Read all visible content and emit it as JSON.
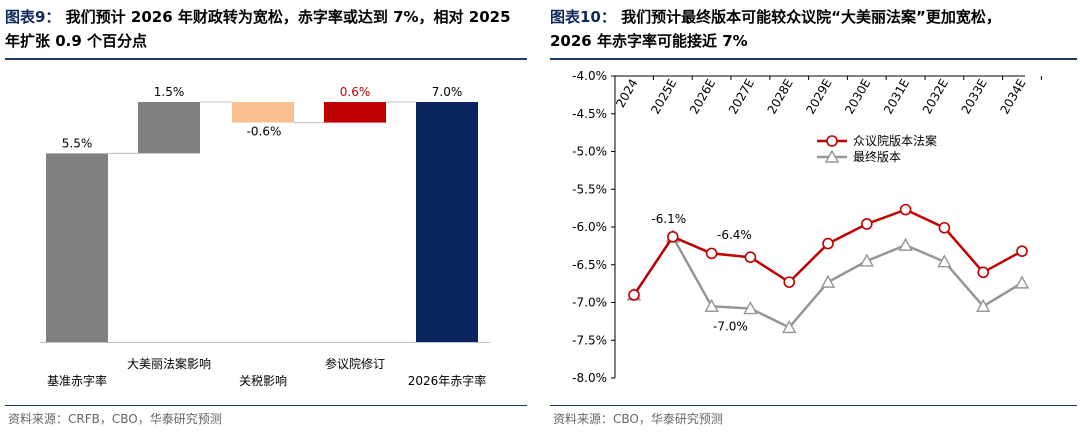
{
  "left": {
    "title_label": "图表9：",
    "title_line1": "我们预计 2026 年财政转为宽松，赤字率或达到 7%，相对 2025",
    "title_line2": "年扩张 0.9 个百分点",
    "source": "资料来源：CRFB，CBO，华泰研究预测",
    "colors": {
      "gray": "#808080",
      "peach": "#fac090",
      "red": "#c00000",
      "navy": "#0b2560",
      "label_red": "#c00000"
    },
    "chart_data": {
      "type": "bar",
      "subtype": "waterfall",
      "categories": [
        "基准赤字率",
        "大美丽法案影响",
        "关税影响",
        "参议院修订",
        "2026年赤字率"
      ],
      "values": [
        5.5,
        1.5,
        -0.6,
        0.6,
        7.0
      ],
      "measure": [
        "absolute",
        "relative",
        "relative",
        "relative",
        "total"
      ],
      "data_labels": [
        "5.5%",
        "1.5%",
        "-0.6%",
        "0.6%",
        "7.0%"
      ],
      "unit": "%",
      "ylim": [
        0,
        7.5
      ]
    }
  },
  "right": {
    "title_label": "图表10：",
    "title_line1": "我们预计最终版本可能较众议院“大美丽法案”更加宽松，",
    "title_line2": "2026 年赤字率可能接近 7%",
    "source": "资料来源：CBO，华泰研究预测",
    "colors": {
      "house": "#c00000",
      "final": "#969696"
    },
    "chart_data": {
      "type": "line",
      "categories": [
        "2024",
        "2025E",
        "2026E",
        "2027E",
        "2028E",
        "2029E",
        "2030E",
        "2031E",
        "2032E",
        "2033E",
        "2034E"
      ],
      "series": [
        {
          "name": "众议院版本法案",
          "marker": "circle",
          "values": [
            -6.9,
            -6.13,
            -6.35,
            -6.4,
            -6.73,
            -6.22,
            -5.96,
            -5.77,
            -6.01,
            -6.6,
            -6.32
          ]
        },
        {
          "name": "最终版本",
          "marker": "triangle",
          "values": [
            -6.9,
            -6.13,
            -7.05,
            -7.08,
            -7.33,
            -6.73,
            -6.45,
            -6.24,
            -6.46,
            -7.05,
            -6.74
          ]
        }
      ],
      "yticks": [
        "-4.0%",
        "-4.5%",
        "-5.0%",
        "-5.5%",
        "-6.0%",
        "-6.5%",
        "-7.0%",
        "-7.5%",
        "-8.0%"
      ],
      "ylim": [
        -8.0,
        -4.0
      ],
      "annotations": [
        "-6.1%",
        "-6.4%",
        "-7.0%"
      ],
      "legend_position": "upper-right",
      "xaxis_position": "top"
    }
  }
}
